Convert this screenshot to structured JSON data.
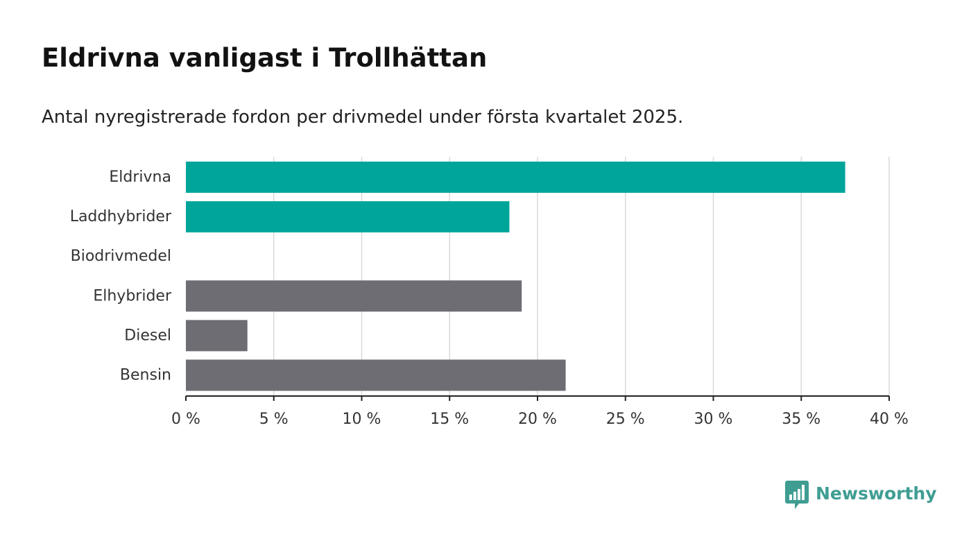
{
  "title": "Eldrivna vanligast i Trollhättan",
  "subtitle": "Antal nyregistrerade fordon per drivmedel under första kvartalet 2025.",
  "brand": {
    "name": "Newsworthy",
    "icon": "bar-chart-speech-bubble-icon",
    "color": "#3f9d92"
  },
  "colors": {
    "highlight": "#00a59a",
    "other": "#6e6d73",
    "grid": "#d9d9d9",
    "axis": "#222222"
  },
  "chart_data": {
    "type": "bar",
    "orientation": "horizontal",
    "title": "Eldrivna vanligast i Trollhättan",
    "subtitle": "Antal nyregistrerade fordon per drivmedel under första kvartalet 2025.",
    "categories": [
      "Eldrivna",
      "Laddhybrider",
      "Biodrivmedel",
      "Elhybrider",
      "Diesel",
      "Bensin"
    ],
    "values": [
      37.5,
      18.4,
      0,
      19.1,
      3.5,
      21.6
    ],
    "highlighted": [
      true,
      true,
      false,
      false,
      false,
      false
    ],
    "unit": "%",
    "xlim": [
      0,
      40
    ],
    "xticks": [
      0,
      5,
      10,
      15,
      20,
      25,
      30,
      35,
      40
    ],
    "xtick_labels": [
      "0 %",
      "5 %",
      "10 %",
      "15 %",
      "20 %",
      "25 %",
      "30 %",
      "35 %",
      "40 %"
    ],
    "grid": true,
    "legend": "none"
  }
}
